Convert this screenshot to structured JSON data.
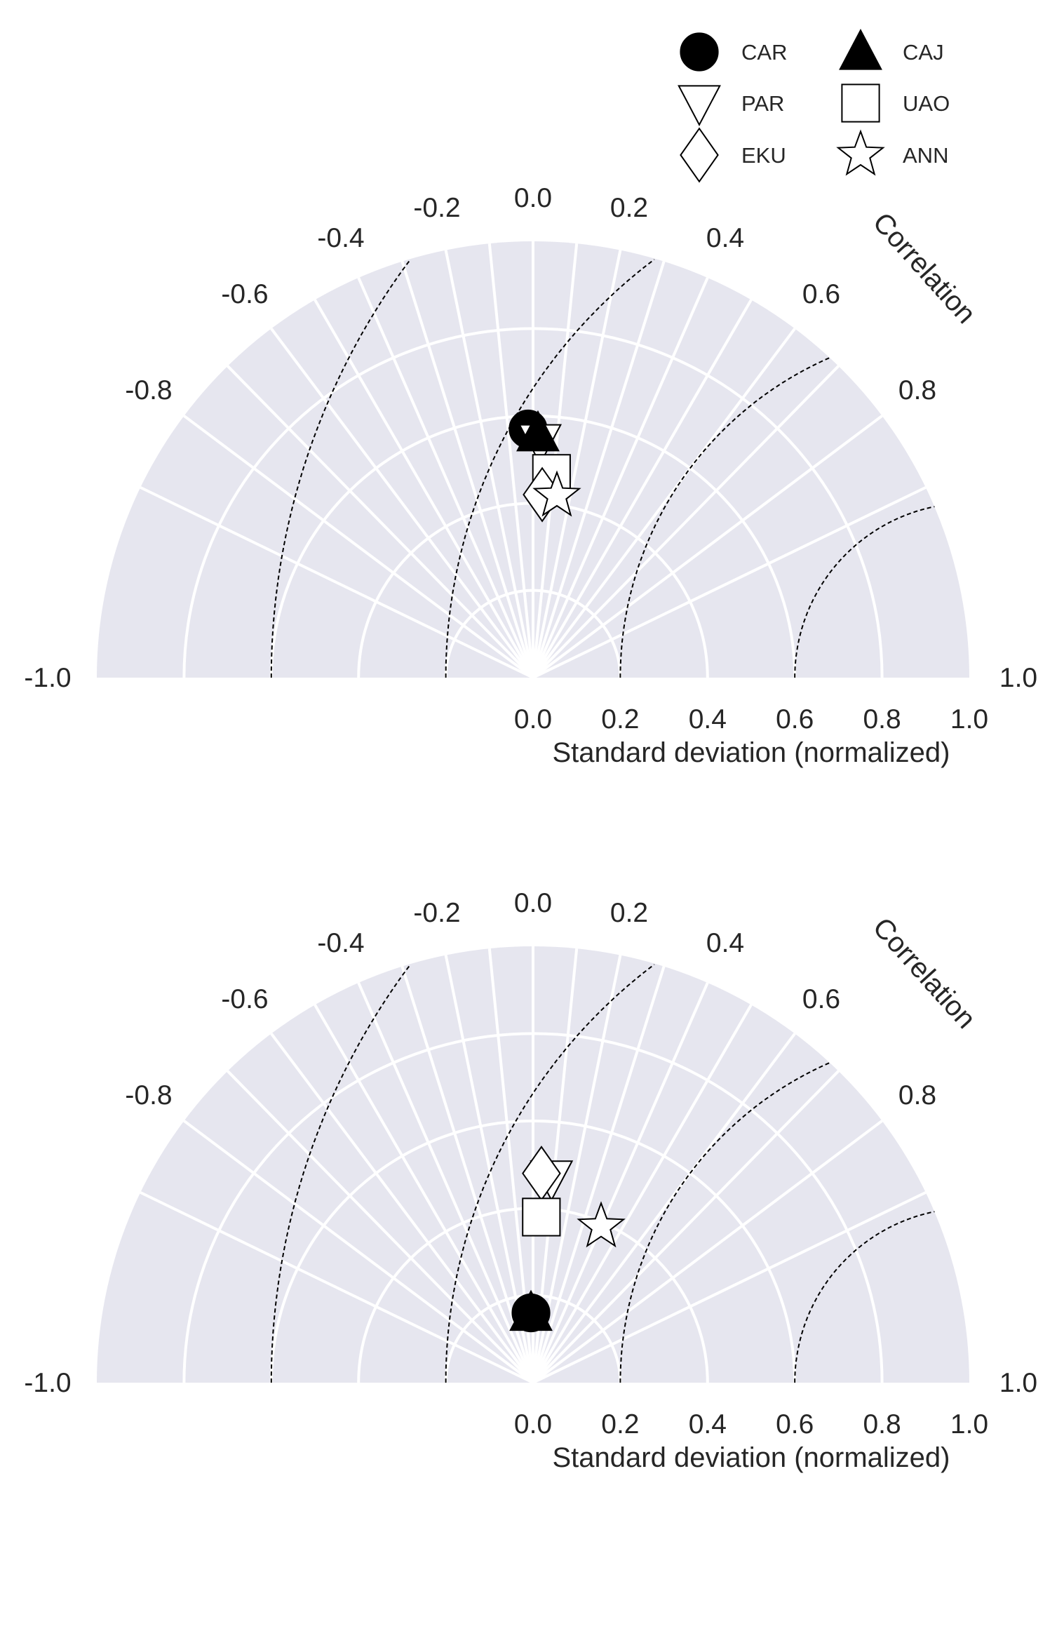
{
  "colors": {
    "panel_background": "#e6e6ef",
    "grid": "#ffffff",
    "rms_contour": "#000000",
    "marker_fill_solid": "#000000",
    "marker_fill_open": "#ffffff",
    "text": "#262626"
  },
  "legend": {
    "placement": "top-right, above the upper chart",
    "columns": 2,
    "entries": [
      {
        "label": "CAR",
        "marker": "filled-circle"
      },
      {
        "label": "CAJ",
        "marker": "filled-triangle-up"
      },
      {
        "label": "PAR",
        "marker": "open-triangle-down"
      },
      {
        "label": "UAO",
        "marker": "open-square"
      },
      {
        "label": "EKU",
        "marker": "open-diamond"
      },
      {
        "label": "ANN",
        "marker": "open-star"
      }
    ]
  },
  "chart_data": [
    {
      "type": "taylor-diagram",
      "correlation_label": "Correlation",
      "std_axis_label": "Standard deviation (normalized)",
      "correlation_range": [
        -1.0,
        1.0
      ],
      "correlation_ticks": [
        "-1.0",
        "-0.8",
        "-0.6",
        "-0.4",
        "-0.2",
        "0.0",
        "0.2",
        "0.4",
        "0.6",
        "0.8",
        "1.0"
      ],
      "std_range": [
        0.0,
        1.0
      ],
      "std_ticks": [
        "0.0",
        "0.2",
        "0.4",
        "0.6",
        "0.8",
        "1.0"
      ],
      "grid": true,
      "rms_contours_centered_at_reference": [
        0.4,
        0.8,
        1.2,
        1.6
      ],
      "series": [
        {
          "name": "CAR",
          "marker": "filled-circle",
          "correlation": -0.02,
          "std": 0.57
        },
        {
          "name": "PAR",
          "marker": "open-triangle-down",
          "correlation": 0.03,
          "std": 0.54
        },
        {
          "name": "CAJ",
          "marker": "filled-triangle-up",
          "correlation": 0.02,
          "std": 0.56
        },
        {
          "name": "UAO",
          "marker": "open-square",
          "correlation": 0.09,
          "std": 0.47
        },
        {
          "name": "EKU",
          "marker": "open-diamond",
          "correlation": 0.05,
          "std": 0.42
        },
        {
          "name": "ANN",
          "marker": "open-star",
          "correlation": 0.13,
          "std": 0.42
        }
      ]
    },
    {
      "type": "taylor-diagram",
      "correlation_label": "Correlation",
      "std_axis_label": "Standard deviation (normalized)",
      "correlation_range": [
        -1.0,
        1.0
      ],
      "correlation_ticks": [
        "-1.0",
        "-0.8",
        "-0.6",
        "-0.4",
        "-0.2",
        "0.0",
        "0.2",
        "0.4",
        "0.6",
        "0.8",
        "1.0"
      ],
      "std_range": [
        0.0,
        1.0
      ],
      "std_ticks": [
        "0.0",
        "0.2",
        "0.4",
        "0.6",
        "0.8",
        "1.0"
      ],
      "grid": true,
      "rms_contours_centered_at_reference": [
        0.4,
        0.8,
        1.2,
        1.6
      ],
      "series": [
        {
          "name": "PAR",
          "marker": "open-triangle-down",
          "correlation": 0.09,
          "std": 0.47
        },
        {
          "name": "EKU",
          "marker": "open-diamond",
          "correlation": 0.04,
          "std": 0.48
        },
        {
          "name": "UAO",
          "marker": "open-square",
          "correlation": 0.05,
          "std": 0.38
        },
        {
          "name": "ANN",
          "marker": "open-star",
          "correlation": 0.4,
          "std": 0.39
        },
        {
          "name": "CAR",
          "marker": "filled-circle",
          "correlation": -0.03,
          "std": 0.16
        },
        {
          "name": "CAJ",
          "marker": "filled-triangle-up",
          "correlation": -0.03,
          "std": 0.16
        }
      ]
    }
  ]
}
